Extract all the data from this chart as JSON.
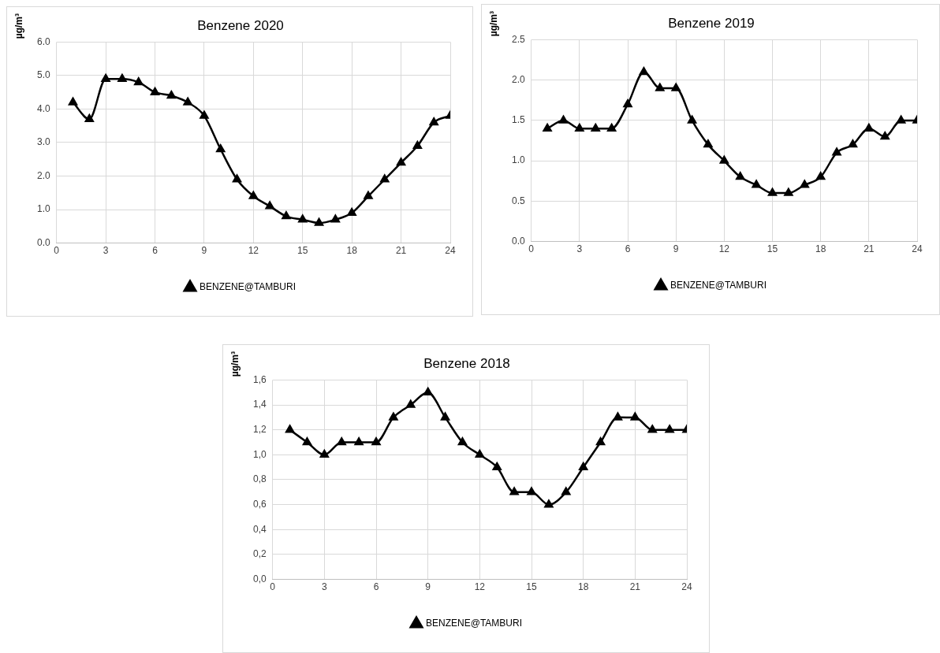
{
  "chart_data": [
    {
      "type": "line",
      "title": "Benzene 2020",
      "ylabel": "µg/m³",
      "x": [
        1,
        2,
        3,
        4,
        5,
        6,
        7,
        8,
        9,
        10,
        11,
        12,
        13,
        14,
        15,
        16,
        17,
        18,
        19,
        20,
        21,
        22,
        23,
        24
      ],
      "series": [
        {
          "name": "BENZENE@TAMBURI",
          "color": "#000000",
          "values": [
            4.2,
            3.7,
            4.9,
            4.9,
            4.8,
            4.5,
            4.4,
            4.2,
            3.8,
            2.8,
            1.9,
            1.4,
            1.1,
            0.8,
            0.7,
            0.6,
            0.7,
            0.9,
            1.4,
            1.9,
            2.4,
            2.9,
            3.6,
            3.8
          ]
        }
      ],
      "xlim": [
        0,
        24
      ],
      "xticks": [
        0,
        3,
        6,
        9,
        12,
        15,
        18,
        21,
        24
      ],
      "ylim": [
        0,
        6
      ],
      "yticks": [
        {
          "value": 0,
          "label": "0.0"
        },
        {
          "value": 1,
          "label": "1.0"
        },
        {
          "value": 2,
          "label": "2.0"
        },
        {
          "value": 3,
          "label": "3.0"
        },
        {
          "value": 4,
          "label": "4.0"
        },
        {
          "value": 5,
          "label": "5.0"
        },
        {
          "value": 6,
          "label": "6.0"
        }
      ],
      "grid": true,
      "legend": "bottom",
      "marker": "triangle",
      "line_style": "solid"
    },
    {
      "type": "line",
      "title": "Benzene 2019",
      "ylabel": "µg/m³",
      "x": [
        1,
        2,
        3,
        4,
        5,
        6,
        7,
        8,
        9,
        10,
        11,
        12,
        13,
        14,
        15,
        16,
        17,
        18,
        19,
        20,
        21,
        22,
        23,
        24
      ],
      "series": [
        {
          "name": "BENZENE@TAMBURI",
          "color": "#000000",
          "values": [
            1.4,
            1.5,
            1.4,
            1.4,
            1.4,
            1.7,
            2.1,
            1.9,
            1.9,
            1.5,
            1.2,
            1.0,
            0.8,
            0.7,
            0.6,
            0.6,
            0.7,
            0.8,
            1.1,
            1.2,
            1.4,
            1.3,
            1.5,
            1.5
          ]
        }
      ],
      "xlim": [
        0,
        24
      ],
      "xticks": [
        0,
        3,
        6,
        9,
        12,
        15,
        18,
        21,
        24
      ],
      "ylim": [
        0,
        2.5
      ],
      "yticks": [
        {
          "value": 0,
          "label": "0.0"
        },
        0.5,
        {
          "value": 1,
          "label": "1.0"
        },
        1.5,
        {
          "value": 2,
          "label": "2.0"
        },
        2.5
      ],
      "grid": true,
      "legend": "bottom",
      "marker": "triangle",
      "line_style": "solid"
    },
    {
      "type": "line",
      "title": "Benzene 2018",
      "ylabel": "µg/m³",
      "x": [
        1,
        2,
        3,
        4,
        5,
        6,
        7,
        8,
        9,
        10,
        11,
        12,
        13,
        14,
        15,
        16,
        17,
        18,
        19,
        20,
        21,
        22,
        23,
        24
      ],
      "series": [
        {
          "name": "BENZENE@TAMBURI",
          "color": "#000000",
          "values": [
            1.2,
            1.1,
            1.0,
            1.1,
            1.1,
            1.1,
            1.3,
            1.4,
            1.5,
            1.3,
            1.1,
            1.0,
            0.9,
            0.7,
            0.7,
            0.6,
            0.7,
            0.9,
            1.1,
            1.3,
            1.3,
            1.2,
            1.2,
            1.2
          ]
        }
      ],
      "xlim": [
        0,
        24
      ],
      "xticks": [
        0,
        3,
        6,
        9,
        12,
        15,
        18,
        21,
        24
      ],
      "ylim": [
        0,
        1.6
      ],
      "yticks": [
        {
          "value": 0,
          "label": "0,0"
        },
        {
          "value": 0.2,
          "label": "0,2"
        },
        {
          "value": 0.4,
          "label": "0,4"
        },
        {
          "value": 0.6,
          "label": "0,6"
        },
        {
          "value": 0.8,
          "label": "0,8"
        },
        {
          "value": 1,
          "label": "1,0"
        },
        {
          "value": 1.2,
          "label": "1,2"
        },
        {
          "value": 1.4,
          "label": "1,4"
        },
        {
          "value": 1.6,
          "label": "1,6"
        }
      ],
      "grid": true,
      "legend": "bottom",
      "marker": "triangle",
      "line_style": "solid"
    }
  ]
}
